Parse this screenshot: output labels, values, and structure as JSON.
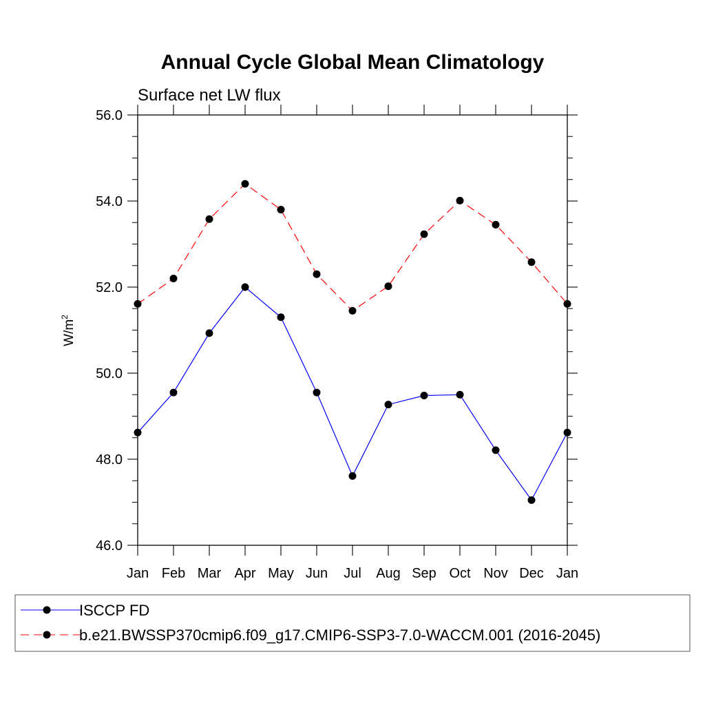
{
  "chart_data": {
    "type": "line",
    "title": "Annual Cycle Global Mean Climatology",
    "subtitle": "Surface net LW flux",
    "ylabel_base": "W/m",
    "ylabel_sup": "2",
    "ylim": [
      46.0,
      56.0
    ],
    "yticks": [
      "46.0",
      "48.0",
      "50.0",
      "52.0",
      "54.0",
      "56.0"
    ],
    "categories": [
      "Jan",
      "Feb",
      "Mar",
      "Apr",
      "May",
      "Jun",
      "Jul",
      "Aug",
      "Sep",
      "Oct",
      "Nov",
      "Dec",
      "Jan"
    ],
    "grid": false,
    "legend_position": "bottom",
    "series": [
      {
        "name": "ISCCP FD",
        "color": "#0000ff",
        "dash": "solid",
        "marker": "filled-circle",
        "values": [
          48.62,
          49.55,
          50.93,
          52.0,
          51.3,
          49.55,
          47.61,
          49.27,
          49.48,
          49.5,
          48.21,
          47.05,
          48.62
        ]
      },
      {
        "name": "b.e21.BWSSP370cmip6.f09_g17.CMIP6-SSP3-7.0-WACCM.001 (2016-2045)",
        "color": "#ff0000",
        "dash": "dashed",
        "marker": "filled-circle",
        "values": [
          51.61,
          52.2,
          53.58,
          54.4,
          53.8,
          52.3,
          51.45,
          52.02,
          53.23,
          54.01,
          53.45,
          52.58,
          51.61
        ]
      }
    ]
  }
}
